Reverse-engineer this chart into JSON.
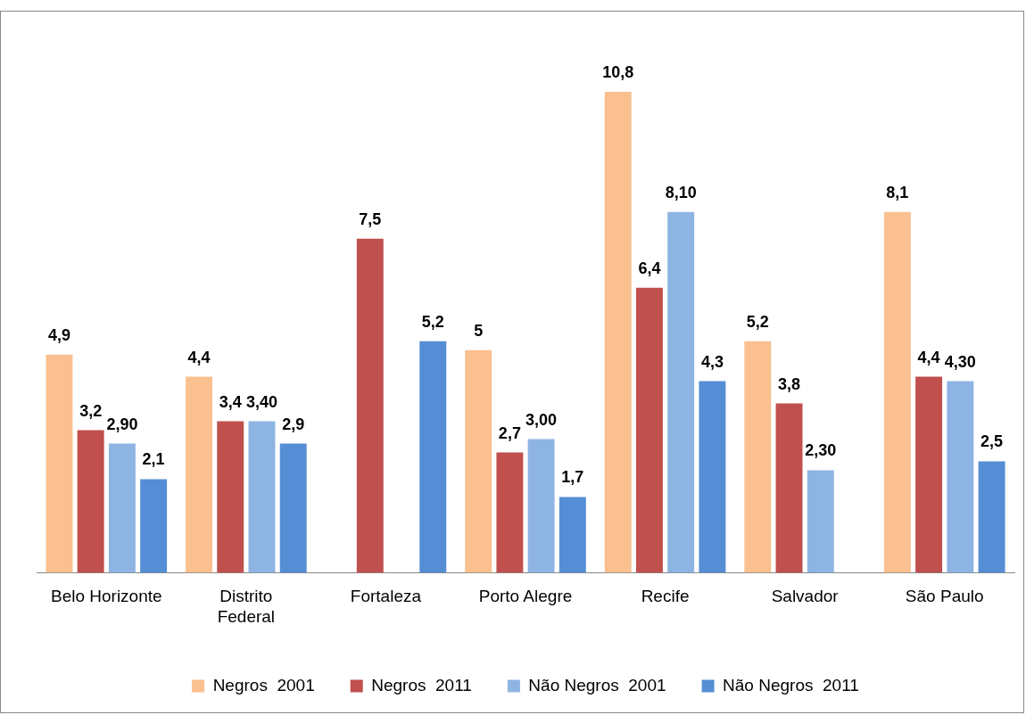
{
  "chart_data": {
    "type": "bar",
    "categories": [
      "Belo Horizonte",
      "Distrito Federal",
      "Fortaleza",
      "Porto Alegre",
      "Recife",
      "Salvador",
      "São Paulo"
    ],
    "series": [
      {
        "name": "Negros  2001",
        "color": "#fac090",
        "values": [
          4.9,
          4.4,
          null,
          5,
          10.8,
          5.2,
          8.1
        ],
        "value_labels": [
          "4,9",
          "4,4",
          null,
          "5",
          "10,8",
          "5,2",
          "8,1"
        ]
      },
      {
        "name": "Negros  2011",
        "color": "#c0504d",
        "values": [
          3.2,
          3.4,
          7.5,
          2.7,
          6.4,
          3.8,
          4.4
        ],
        "value_labels": [
          "3,2",
          "3,4",
          "7,5",
          "2,7",
          "6,4",
          "3,8",
          "4,4"
        ]
      },
      {
        "name": "Não Negros  2001",
        "color": "#8eb4e3",
        "values": [
          2.9,
          3.4,
          null,
          3.0,
          8.1,
          2.3,
          4.3
        ],
        "value_labels": [
          "2,90",
          "3,40",
          null,
          "3,00",
          "8,10",
          "2,30",
          "4,30"
        ]
      },
      {
        "name": "Não Negros  2011",
        "color": "#558ed5",
        "values": [
          2.1,
          2.9,
          5.2,
          1.7,
          4.3,
          null,
          2.5
        ],
        "value_labels": [
          "2,1",
          "2,9",
          "5,2",
          "1,7",
          "4,3",
          null,
          "2,5"
        ]
      }
    ],
    "grid": false,
    "legend": "bottom"
  }
}
